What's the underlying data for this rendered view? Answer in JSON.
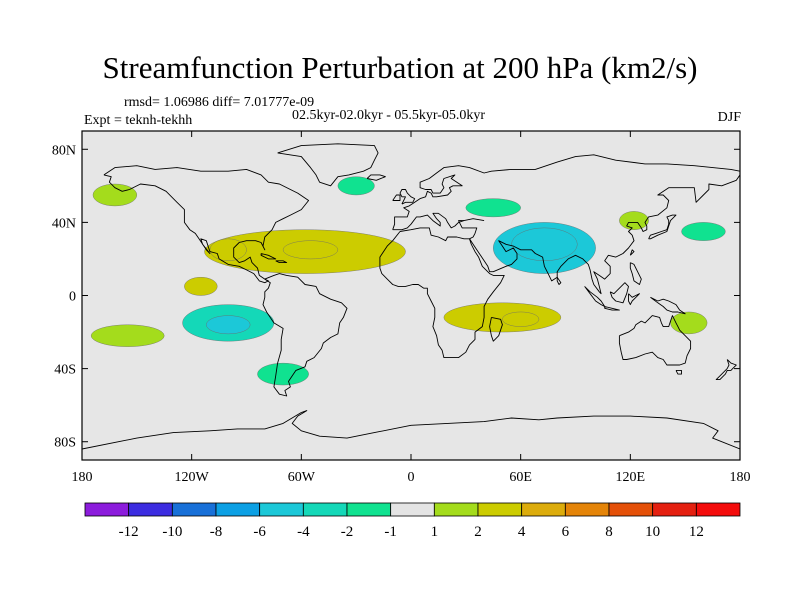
{
  "title": "Streamfunction Perturbation at 200 hPa (km2/s)",
  "stats_line": "rmsd= 1.06986 diff= 7.01777e-09",
  "experiment_line": "Expt = teknh-tekhh",
  "period_line": "02.5kyr-02.0kyr - 05.5kyr-05.0kyr",
  "season": "DJF",
  "chart_data": {
    "type": "contour-map",
    "projection": "cylindrical-equidistant",
    "variable": "200 hPa streamfunction perturbation",
    "units": "km2/s",
    "lon_range": [
      -180,
      180
    ],
    "lat_range": [
      -90,
      90
    ],
    "lat_ticks": [
      {
        "value": 80,
        "label": "80N"
      },
      {
        "value": 40,
        "label": "40N"
      },
      {
        "value": 0,
        "label": "0"
      },
      {
        "value": -40,
        "label": "40S"
      },
      {
        "value": -80,
        "label": "80S"
      }
    ],
    "lon_ticks": [
      {
        "value": -180,
        "label": "180"
      },
      {
        "value": -120,
        "label": "120W"
      },
      {
        "value": -60,
        "label": "60W"
      },
      {
        "value": 0,
        "label": "0"
      },
      {
        "value": 60,
        "label": "60E"
      },
      {
        "value": 120,
        "label": "120E"
      },
      {
        "value": 180,
        "label": "180"
      }
    ],
    "contour_levels": [
      -12,
      -10,
      -8,
      -6,
      -4,
      -2,
      -1,
      1,
      2,
      4,
      6,
      8,
      10,
      12
    ],
    "colorbar_labels": [
      "-12",
      "-10",
      "-8",
      "-6",
      "-4",
      "-2",
      "-1",
      "1",
      "2",
      "4",
      "6",
      "8",
      "10",
      "12"
    ],
    "colorbar_colors": [
      "#8c1cdc",
      "#3c2ce0",
      "#1870d8",
      "#0ca0e4",
      "#1cc8d8",
      "#14d8b8",
      "#10e290",
      "#e4e4e4",
      "#a4dc1c",
      "#cccc00",
      "#dcac0c",
      "#e48408",
      "#e45008",
      "#e42010",
      "#f40c0c"
    ],
    "background_color": "#e6e6e6",
    "anomalies": [
      {
        "lon": 73,
        "lat": 26,
        "rx": 28,
        "ry": 14,
        "value": -4.5
      },
      {
        "lon": 73,
        "lat": 28,
        "rx": 18,
        "ry": 9,
        "value": -5.5
      },
      {
        "lon": -100,
        "lat": -15,
        "rx": 25,
        "ry": 10,
        "value": -2.5
      },
      {
        "lon": -100,
        "lat": -16,
        "rx": 12,
        "ry": 5,
        "value": -4.5
      },
      {
        "lon": -70,
        "lat": -43,
        "rx": 14,
        "ry": 6,
        "value": -1.5
      },
      {
        "lon": -30,
        "lat": 60,
        "rx": 10,
        "ry": 5,
        "value": -1.5
      },
      {
        "lon": 45,
        "lat": 48,
        "rx": 15,
        "ry": 5,
        "value": -1.5
      },
      {
        "lon": 160,
        "lat": 35,
        "rx": 12,
        "ry": 5,
        "value": -1.5
      },
      {
        "lon": -58,
        "lat": 24,
        "rx": 55,
        "ry": 12,
        "value": 2.2
      },
      {
        "lon": -55,
        "lat": 25,
        "rx": 15,
        "ry": 5,
        "value": 3.2
      },
      {
        "lon": -100,
        "lat": 25,
        "rx": 10,
        "ry": 6,
        "value": 3.2
      },
      {
        "lon": -115,
        "lat": 5,
        "rx": 9,
        "ry": 5,
        "value": 3.2
      },
      {
        "lon": 50,
        "lat": -12,
        "rx": 32,
        "ry": 8,
        "value": 2.2
      },
      {
        "lon": 60,
        "lat": -13,
        "rx": 10,
        "ry": 4,
        "value": 3.2
      },
      {
        "lon": -162,
        "lat": 55,
        "rx": 12,
        "ry": 6,
        "value": 1.5
      },
      {
        "lon": 122,
        "lat": 41,
        "rx": 8,
        "ry": 5,
        "value": 1.5
      },
      {
        "lon": -155,
        "lat": -22,
        "rx": 20,
        "ry": 6,
        "value": 1.5
      },
      {
        "lon": 152,
        "lat": -15,
        "rx": 10,
        "ry": 6,
        "value": 1.5
      }
    ]
  }
}
